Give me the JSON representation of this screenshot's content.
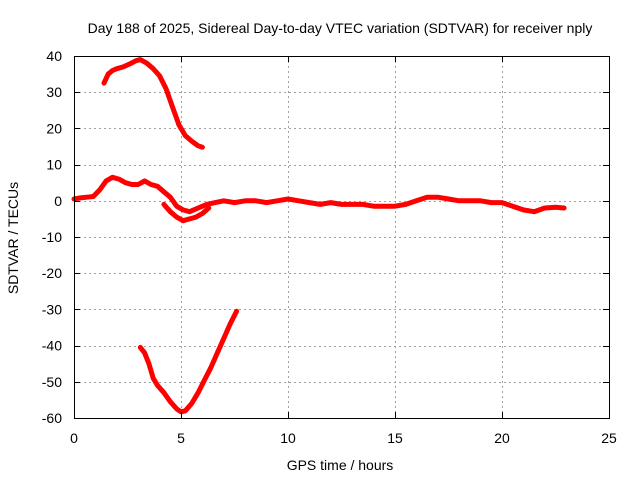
{
  "chart_data": {
    "type": "line",
    "title": "Day 188 of 2025, Sidereal Day-to-day VTEC variation (SDTVAR) for receiver nply",
    "xlabel": "GPS time / hours",
    "ylabel": "SDTVAR / TECUs",
    "xlim": [
      0,
      25
    ],
    "ylim": [
      -60,
      40
    ],
    "x_ticks": [
      0,
      5,
      10,
      15,
      20,
      25
    ],
    "y_ticks": [
      -60,
      -50,
      -40,
      -30,
      -20,
      -10,
      0,
      10,
      20,
      30,
      40
    ],
    "x_tick_labels": [
      "0",
      "5",
      "10",
      "15",
      "20",
      "25"
    ],
    "y_tick_labels": [
      "-60",
      "-50",
      "-40",
      "-30",
      "-20",
      "-10",
      "0",
      "10",
      "20",
      "30",
      "40"
    ],
    "grid": true,
    "line_color": "#ff0000",
    "series": [
      {
        "name": "upper arc",
        "x": [
          1.4,
          1.6,
          1.8,
          2.0,
          2.3,
          2.6,
          2.9,
          3.1,
          3.4,
          3.7,
          4.0,
          4.3,
          4.6,
          4.9,
          5.2,
          5.5,
          5.8,
          6.0
        ],
        "y": [
          32.5,
          35.0,
          36.0,
          36.5,
          37.0,
          37.8,
          38.7,
          39.0,
          38.0,
          36.5,
          34.5,
          31.0,
          26.0,
          21.0,
          18.0,
          16.5,
          15.2,
          14.8
        ]
      },
      {
        "name": "main trace",
        "x": [
          0.0,
          0.3,
          0.6,
          0.9,
          1.2,
          1.5,
          1.8,
          2.1,
          2.4,
          2.7,
          3.0,
          3.3,
          3.6,
          3.9,
          4.2,
          4.5,
          4.8,
          5.1,
          5.4,
          5.8,
          6.2,
          6.6,
          7.0,
          7.5,
          8.0,
          8.5,
          9.0,
          9.5,
          10.0,
          10.5,
          11.0,
          11.5,
          12.0,
          12.5,
          13.0,
          13.5,
          14.0,
          14.5,
          15.0,
          15.5,
          16.0,
          16.5,
          17.0,
          17.5,
          18.0,
          18.5,
          19.0,
          19.5,
          20.0,
          20.5,
          21.0,
          21.5,
          22.0,
          22.5,
          22.9
        ],
        "y": [
          0.5,
          0.8,
          1.0,
          1.2,
          3.0,
          5.5,
          6.5,
          6.0,
          5.0,
          4.5,
          4.5,
          5.5,
          4.5,
          4.0,
          2.5,
          1.0,
          -1.5,
          -2.5,
          -3.0,
          -2.0,
          -1.0,
          -0.5,
          0.0,
          -0.5,
          0.0,
          0.0,
          -0.5,
          0.0,
          0.5,
          0.0,
          -0.5,
          -1.0,
          -0.5,
          -1.0,
          -1.0,
          -1.0,
          -1.5,
          -1.5,
          -1.5,
          -1.0,
          0.0,
          1.0,
          1.0,
          0.5,
          0.0,
          0.0,
          0.0,
          -0.5,
          -0.5,
          -1.5,
          -2.5,
          -3.0,
          -2.0,
          -1.8,
          -2.0
        ]
      },
      {
        "name": "dip segment",
        "x": [
          4.2,
          4.5,
          4.8,
          5.1,
          5.4,
          5.7,
          6.0,
          6.3
        ],
        "y": [
          -1.0,
          -3.0,
          -4.5,
          -5.5,
          -5.0,
          -4.5,
          -3.5,
          -2.0
        ]
      },
      {
        "name": "lower arc",
        "x": [
          3.1,
          3.3,
          3.5,
          3.7,
          3.9,
          4.2,
          4.5,
          4.8,
          5.0,
          5.2,
          5.5,
          5.8,
          6.1,
          6.4,
          6.7,
          7.0,
          7.3,
          7.6
        ],
        "y": [
          -40.5,
          -42.0,
          -45.0,
          -49.0,
          -51.0,
          -53.0,
          -55.5,
          -57.5,
          -58.3,
          -58.0,
          -56.0,
          -53.0,
          -49.5,
          -46.0,
          -42.0,
          -38.0,
          -34.0,
          -30.5
        ]
      }
    ]
  }
}
